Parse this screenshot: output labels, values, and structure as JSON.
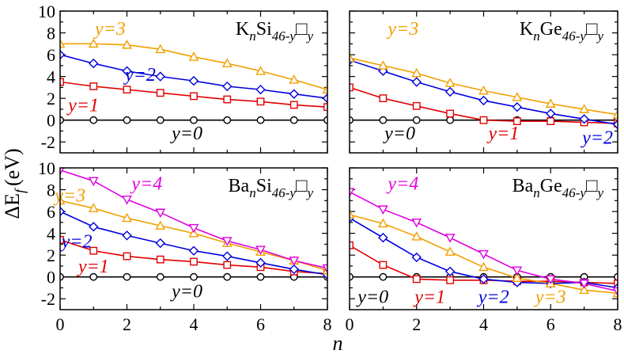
{
  "figure": {
    "ylabel_main": "ΔE",
    "ylabel_sub": "f",
    "ylabel_unit": "(eV)",
    "xlabel": "n"
  },
  "colors": {
    "y0": "#000000",
    "y1": "#e00000",
    "y2": "#0000e0",
    "y3": "#f0a000",
    "y4": "#e000e0"
  },
  "chart_data": [
    {
      "type": "line",
      "panel": "top-left",
      "title_parts": [
        "K",
        "n",
        "Si",
        "46-y",
        "□",
        "y"
      ],
      "x": [
        0,
        1,
        2,
        3,
        4,
        5,
        6,
        7,
        8
      ],
      "xlim": [
        0,
        8
      ],
      "ylim": [
        -3,
        10
      ],
      "xticks": [
        "0",
        "2",
        "4",
        "6",
        "8"
      ],
      "yticks": [
        "-2",
        "0",
        "2",
        "4",
        "6",
        "8",
        "10"
      ],
      "series": [
        {
          "name": "y=0",
          "label": "y=0",
          "values": [
            0,
            0,
            0,
            0,
            0,
            0,
            0,
            0,
            0
          ],
          "marker": "circle",
          "color_key": "y0",
          "label_x": 3.8,
          "label_y": -1.2
        },
        {
          "name": "y=1",
          "label": "y=1",
          "values": [
            3.5,
            3.1,
            2.8,
            2.5,
            2.2,
            1.9,
            1.7,
            1.4,
            1.2
          ],
          "marker": "square",
          "color_key": "y1",
          "label_x": 0.7,
          "label_y": 1.4
        },
        {
          "name": "y=2",
          "label": "y=2",
          "values": [
            6.0,
            5.2,
            4.5,
            4.0,
            3.6,
            3.1,
            2.8,
            2.4,
            2.0
          ],
          "marker": "diamond",
          "color_key": "y2",
          "label_x": 2.4,
          "label_y": 4.2
        },
        {
          "name": "y=3",
          "label": "y=3",
          "values": [
            7.0,
            7.0,
            6.9,
            6.5,
            5.8,
            5.2,
            4.5,
            3.7,
            2.8
          ],
          "marker": "triangle-up",
          "color_key": "y3",
          "label_x": 1.5,
          "label_y": 8.4
        }
      ]
    },
    {
      "type": "line",
      "panel": "top-right",
      "title_parts": [
        "K",
        "n",
        "Ge",
        "46-y",
        "□",
        "y"
      ],
      "x": [
        0,
        1,
        2,
        3,
        4,
        5,
        6,
        7,
        8
      ],
      "xlim": [
        0,
        8
      ],
      "ylim": [
        -3,
        10
      ],
      "xticks": [
        "0",
        "2",
        "4",
        "6",
        "8"
      ],
      "yticks": [
        "-2",
        "0",
        "2",
        "4",
        "6",
        "8",
        "10"
      ],
      "series": [
        {
          "name": "y=0",
          "label": "y=0",
          "values": [
            0,
            0,
            0,
            0,
            0,
            0,
            0,
            0,
            0
          ],
          "marker": "circle",
          "color_key": "y0",
          "label_x": 1.5,
          "label_y": -1.2
        },
        {
          "name": "y=1",
          "label": "y=1",
          "values": [
            3.0,
            2.0,
            1.3,
            0.6,
            0.0,
            -0.1,
            -0.1,
            -0.2,
            -0.3
          ],
          "marker": "square",
          "color_key": "y1",
          "label_x": 4.6,
          "label_y": -1.2
        },
        {
          "name": "y=2",
          "label": "y=2",
          "values": [
            5.5,
            4.5,
            3.5,
            2.6,
            1.8,
            1.2,
            0.6,
            0.1,
            -0.4
          ],
          "marker": "diamond",
          "color_key": "y2",
          "label_x": 7.4,
          "label_y": -1.6
        },
        {
          "name": "y=3",
          "label": "y=3",
          "values": [
            5.7,
            5.0,
            4.3,
            3.4,
            2.7,
            2.1,
            1.5,
            1.0,
            0.5
          ],
          "marker": "triangle-up",
          "color_key": "y3",
          "label_x": 1.6,
          "label_y": 8.4
        }
      ]
    },
    {
      "type": "line",
      "panel": "bottom-left",
      "title_parts": [
        "Ba",
        "n",
        "Si",
        "46-y",
        "□",
        "y"
      ],
      "x": [
        0,
        1,
        2,
        3,
        4,
        5,
        6,
        7,
        8
      ],
      "xlim": [
        0,
        8
      ],
      "ylim": [
        -3,
        10
      ],
      "xticks": [
        "0",
        "2",
        "4",
        "6",
        "8"
      ],
      "yticks": [
        "-2",
        "0",
        "2",
        "4",
        "6",
        "8",
        "10"
      ],
      "series": [
        {
          "name": "y=0",
          "label": "y=0",
          "values": [
            0,
            0,
            0,
            0,
            0,
            0,
            0,
            0,
            0
          ],
          "marker": "circle",
          "color_key": "y0",
          "label_x": 3.8,
          "label_y": -1.3
        },
        {
          "name": "y=1",
          "label": "y=1",
          "values": [
            3.4,
            2.4,
            1.9,
            1.6,
            1.4,
            1.1,
            0.9,
            0.5,
            0.3
          ],
          "marker": "square",
          "color_key": "y1",
          "label_x": 1.0,
          "label_y": 1.0
        },
        {
          "name": "y=2",
          "label": "y=2",
          "values": [
            6.0,
            4.6,
            3.8,
            3.1,
            2.4,
            1.9,
            1.3,
            0.7,
            0.2
          ],
          "marker": "diamond",
          "color_key": "y2",
          "label_x": 0.5,
          "label_y": 3.3
        },
        {
          "name": "y=3",
          "label": "y=3",
          "values": [
            7.0,
            6.3,
            5.4,
            4.7,
            4.0,
            3.1,
            2.3,
            1.5,
            0.6
          ],
          "marker": "triangle-up",
          "color_key": "y3",
          "label_x": 0.3,
          "label_y": 7.5
        },
        {
          "name": "y=4",
          "label": "y=4",
          "values": [
            9.8,
            8.8,
            7.1,
            5.9,
            4.5,
            3.3,
            2.5,
            1.5,
            0.8
          ],
          "marker": "triangle-down",
          "color_key": "y4",
          "label_x": 2.6,
          "label_y": 8.6
        }
      ]
    },
    {
      "type": "line",
      "panel": "bottom-right",
      "title_parts": [
        "Ba",
        "n",
        "Ge",
        "46-y",
        "□",
        "y"
      ],
      "x": [
        0,
        1,
        2,
        3,
        4,
        5,
        6,
        7,
        8
      ],
      "xlim": [
        0,
        8
      ],
      "ylim": [
        -3,
        10
      ],
      "xticks": [
        "0",
        "2",
        "4",
        "6",
        "8"
      ],
      "yticks": [
        "-2",
        "0",
        "2",
        "4",
        "6",
        "8",
        "10"
      ],
      "series": [
        {
          "name": "y=0",
          "label": "y=0",
          "values": [
            0,
            0,
            0,
            0,
            0,
            0,
            0,
            0,
            0
          ],
          "marker": "circle",
          "color_key": "y0",
          "label_x": 0.7,
          "label_y": -1.8
        },
        {
          "name": "y=1",
          "label": "y=1",
          "values": [
            2.9,
            1.1,
            -0.2,
            -0.3,
            -0.3,
            -0.4,
            -0.4,
            -0.5,
            -0.6
          ],
          "marker": "square",
          "color_key": "y1",
          "label_x": 2.4,
          "label_y": -1.8
        },
        {
          "name": "y=2",
          "label": "y=2",
          "values": [
            5.4,
            3.6,
            1.8,
            0.5,
            -0.2,
            -0.5,
            -0.6,
            -0.5,
            -1.0
          ],
          "marker": "diamond",
          "color_key": "y2",
          "label_x": 4.3,
          "label_y": -1.8
        },
        {
          "name": "y=3",
          "label": "y=3",
          "values": [
            5.7,
            4.9,
            3.7,
            2.3,
            0.9,
            -0.1,
            -0.6,
            -1.2,
            -1.5
          ],
          "marker": "triangle-up",
          "color_key": "y3",
          "label_x": 6.0,
          "label_y": -1.8
        },
        {
          "name": "y=4",
          "label": "y=4",
          "values": [
            7.8,
            6.2,
            5.0,
            3.6,
            2.1,
            0.6,
            -0.2,
            -0.6,
            -1.3
          ],
          "marker": "triangle-down",
          "color_key": "y4",
          "label_x": 1.6,
          "label_y": 8.6
        }
      ]
    }
  ]
}
